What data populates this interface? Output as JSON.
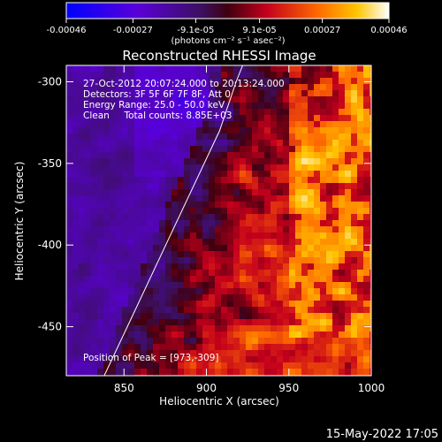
{
  "chart_data": {
    "type": "heatmap",
    "title": "Reconstructed RHESSI Image",
    "xlabel": "Heliocentric X (arcsec)",
    "ylabel": "Heliocentric Y (arcsec)",
    "xlim": [
      815,
      1000
    ],
    "ylim": [
      -480,
      -290
    ],
    "x_ticks": [
      850,
      900,
      950,
      1000
    ],
    "y_ticks": [
      -300,
      -350,
      -400,
      -450
    ],
    "colorbar": {
      "ticks": [
        "-0.00046",
        "-0.00027",
        "-9.1e-05",
        "9.1e-05",
        "0.00027",
        "0.00046"
      ],
      "tick_values": [
        -0.00046,
        -0.00027,
        -9.1e-05,
        9.1e-05,
        0.00027,
        0.00046
      ],
      "range": [
        -0.00046,
        0.00046
      ],
      "unit_label": "(photons cm⁻² s⁻¹ asec⁻²)",
      "colors": [
        "#0000ff",
        "#7b00c8",
        "#5a1a8a",
        "#c4002a",
        "#ff6a00",
        "#ffd000",
        "#ffffff"
      ]
    },
    "annotations": {
      "time_range": "27-Oct-2012 20:07:24.000 to 20:13:24.000",
      "detectors": "Detectors: 3F 5F 6F 7F 8F, Att 0",
      "energy_range": "Energy Range: 25.0 - 50.0 keV",
      "method": "Clean     Total counts: 8.85E+03",
      "peak": "Position of Peak = [973,-309]"
    },
    "limb_curve": [
      [
        838,
        -480
      ],
      [
        852,
        -450
      ],
      [
        866,
        -420
      ],
      [
        880,
        -390
      ],
      [
        894,
        -360
      ],
      [
        908,
        -330
      ],
      [
        918,
        -300
      ],
      [
        922,
        -290
      ]
    ],
    "peak_position": [
      973,
      -309
    ],
    "timestamp": "15-May-2022 17:05"
  }
}
